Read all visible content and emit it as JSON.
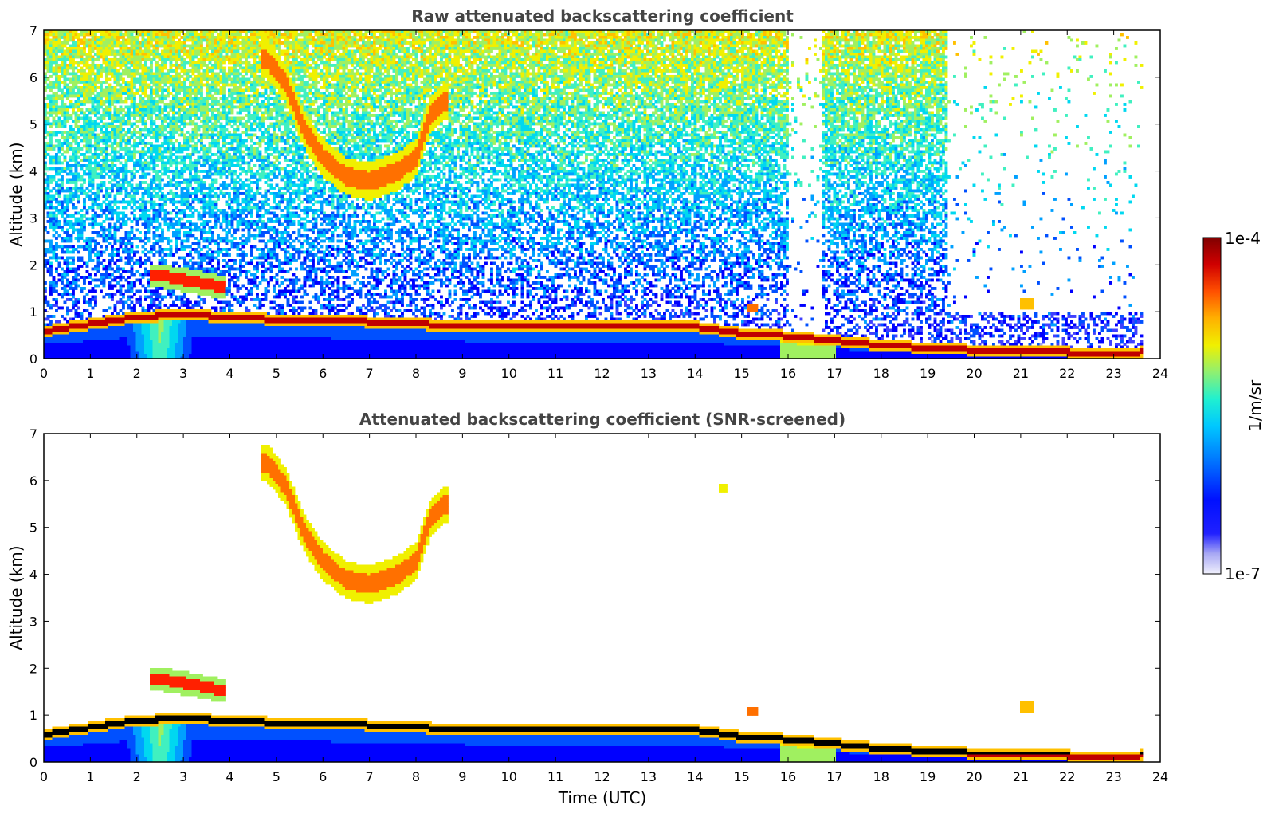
{
  "chart_data": [
    {
      "type": "heatmap",
      "title": "Raw attenuated backscattering coefficient",
      "xlabel": "",
      "ylabel": "Altitude (km)",
      "xlim": [
        0,
        24
      ],
      "ylim": [
        0,
        7
      ],
      "x_ticks": [
        "0",
        "1",
        "2",
        "3",
        "4",
        "5",
        "6",
        "7",
        "8",
        "9",
        "10",
        "11",
        "12",
        "13",
        "14",
        "15",
        "16",
        "17",
        "18",
        "19",
        "20",
        "21",
        "22",
        "23",
        "24"
      ],
      "y_ticks": [
        "0",
        "1",
        "2",
        "3",
        "4",
        "5",
        "6",
        "7"
      ],
      "features": {
        "boundary_layer_top_km": [
          [
            0,
            0.65
          ],
          [
            1,
            0.8
          ],
          [
            2,
            0.95
          ],
          [
            3,
            1.0
          ],
          [
            4,
            0.95
          ],
          [
            5,
            0.9
          ],
          [
            6,
            0.9
          ],
          [
            8,
            0.8
          ],
          [
            10,
            0.75
          ],
          [
            12,
            0.75
          ],
          [
            14,
            0.75
          ],
          [
            15,
            0.6
          ],
          [
            16,
            0.55
          ],
          [
            17,
            0.45
          ],
          [
            18,
            0.35
          ],
          [
            19,
            0.3
          ],
          [
            20,
            0.25
          ],
          [
            21,
            0.2
          ],
          [
            22,
            0.2
          ],
          [
            23,
            0.15
          ],
          [
            23.6,
            0.2
          ]
        ],
        "elevated_layer_km": [
          [
            2.4,
            1.8
          ],
          [
            3.0,
            1.7
          ],
          [
            3.8,
            1.55
          ]
        ],
        "mid_level_cloud_km": [
          [
            4.8,
            6.4
          ],
          [
            5.2,
            5.9
          ],
          [
            5.6,
            4.9
          ],
          [
            6.0,
            4.3
          ],
          [
            6.5,
            3.9
          ],
          [
            7.0,
            3.8
          ],
          [
            7.6,
            4.0
          ],
          [
            8.0,
            4.3
          ],
          [
            8.3,
            5.2
          ],
          [
            8.6,
            5.5
          ]
        ]
      }
    },
    {
      "type": "heatmap",
      "title": "Attenuated backscattering coefficient (SNR-screened)",
      "xlabel": "Time (UTC)",
      "ylabel": "Altitude (km)",
      "xlim": [
        0,
        24
      ],
      "ylim": [
        0,
        7
      ],
      "x_ticks": [
        "0",
        "1",
        "2",
        "3",
        "4",
        "5",
        "6",
        "7",
        "8",
        "9",
        "10",
        "11",
        "12",
        "13",
        "14",
        "15",
        "16",
        "17",
        "18",
        "19",
        "20",
        "21",
        "22",
        "23",
        "24"
      ],
      "y_ticks": [
        "0",
        "1",
        "2",
        "3",
        "4",
        "5",
        "6",
        "7"
      ]
    }
  ],
  "colorbar": {
    "label": "1/m/sr",
    "max_label": "1e-4",
    "min_label": "1e-7",
    "scale": "log",
    "range": [
      1e-07,
      0.0001
    ],
    "colormap": [
      "#e8e8f8",
      "#a0a0f0",
      "#4040ff",
      "#0000ff",
      "#0050ff",
      "#00a0ff",
      "#00d8f0",
      "#40f0c0",
      "#a0f060",
      "#f0f000",
      "#ffc000",
      "#ff7000",
      "#ff2000",
      "#c00000",
      "#800000"
    ]
  }
}
